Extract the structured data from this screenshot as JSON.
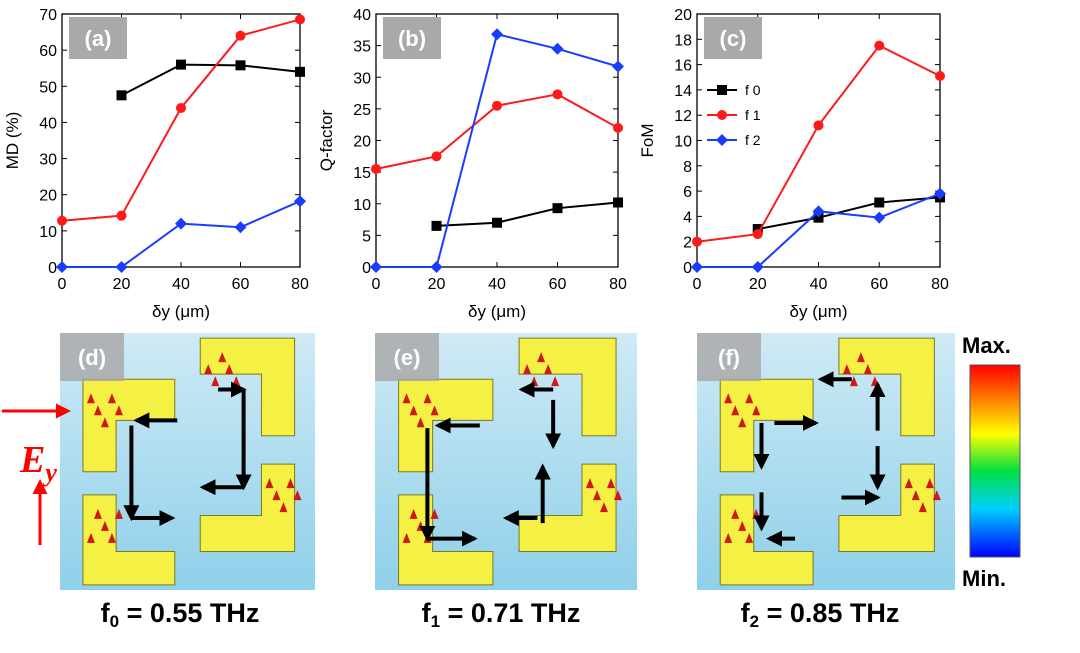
{
  "colors": {
    "f0": "#000000",
    "f1": "#ff1a1a",
    "f2": "#1a3cff",
    "field_bg_top": "#cfeaf5",
    "field_bg_bottom": "#8fd0ea",
    "resonator": "#f5f044",
    "panel_label_bg": "#a9a9a9",
    "arrow_hot": "#d11818"
  },
  "chart_data": [
    {
      "type": "line",
      "panel": "(a)",
      "xlabel": "δy (μm)",
      "ylabel": "MD (%)",
      "xlim": [
        0,
        80
      ],
      "ylim": [
        0,
        70
      ],
      "xticks": [
        0,
        20,
        40,
        60,
        80
      ],
      "yticks": [
        0,
        10,
        20,
        30,
        40,
        50,
        60,
        70
      ],
      "legend": false,
      "series": [
        {
          "key": "f0",
          "marker": "square",
          "points": [
            [
              20,
              47.5
            ],
            [
              40,
              56
            ],
            [
              60,
              55.8
            ],
            [
              80,
              54
            ]
          ]
        },
        {
          "key": "f1",
          "marker": "circle",
          "points": [
            [
              0,
              12.8
            ],
            [
              20,
              14.2
            ],
            [
              40,
              44
            ],
            [
              60,
              64
            ],
            [
              80,
              68.5
            ]
          ]
        },
        {
          "key": "f2",
          "marker": "diamond",
          "points": [
            [
              0,
              0
            ],
            [
              20,
              0
            ],
            [
              40,
              12
            ],
            [
              60,
              11
            ],
            [
              80,
              18.2
            ]
          ]
        }
      ]
    },
    {
      "type": "line",
      "panel": "(b)",
      "xlabel": "δy (μm)",
      "ylabel": "Q-factor",
      "xlim": [
        0,
        80
      ],
      "ylim": [
        0,
        40
      ],
      "xticks": [
        0,
        20,
        40,
        60,
        80
      ],
      "yticks": [
        0,
        5,
        10,
        15,
        20,
        25,
        30,
        35,
        40
      ],
      "legend": false,
      "series": [
        {
          "key": "f0",
          "marker": "square",
          "points": [
            [
              20,
              6.5
            ],
            [
              40,
              7
            ],
            [
              60,
              9.3
            ],
            [
              80,
              10.2
            ]
          ]
        },
        {
          "key": "f1",
          "marker": "circle",
          "points": [
            [
              0,
              15.5
            ],
            [
              20,
              17.5
            ],
            [
              40,
              25.5
            ],
            [
              60,
              27.3
            ],
            [
              80,
              22
            ]
          ]
        },
        {
          "key": "f2",
          "marker": "diamond",
          "points": [
            [
              0,
              0
            ],
            [
              20,
              0
            ],
            [
              40,
              36.8
            ],
            [
              60,
              34.5
            ],
            [
              80,
              31.7
            ]
          ]
        }
      ]
    },
    {
      "type": "line",
      "panel": "(c)",
      "xlabel": "δy (μm)",
      "ylabel": "FoM",
      "xlim": [
        0,
        80
      ],
      "ylim": [
        0,
        20
      ],
      "xticks": [
        0,
        20,
        40,
        60,
        80
      ],
      "yticks": [
        0,
        2,
        4,
        6,
        8,
        10,
        12,
        14,
        16,
        18,
        20
      ],
      "legend": true,
      "legend_position": "upper-left",
      "legend_entries": [
        "f 0",
        "f 1",
        "f 2"
      ],
      "series": [
        {
          "key": "f0",
          "name": "f 0",
          "marker": "square",
          "points": [
            [
              20,
              3
            ],
            [
              40,
              3.9
            ],
            [
              60,
              5.1
            ],
            [
              80,
              5.5
            ]
          ]
        },
        {
          "key": "f1",
          "name": "f 1",
          "marker": "circle",
          "points": [
            [
              0,
              2
            ],
            [
              20,
              2.6
            ],
            [
              40,
              11.2
            ],
            [
              60,
              17.5
            ],
            [
              80,
              15.1
            ]
          ]
        },
        {
          "key": "f2",
          "name": "f 2",
          "marker": "diamond",
          "points": [
            [
              0,
              0
            ],
            [
              20,
              0
            ],
            [
              40,
              4.4
            ],
            [
              60,
              3.9
            ],
            [
              80,
              5.8
            ]
          ]
        }
      ]
    }
  ],
  "field_maps": [
    {
      "panel": "(d)",
      "freq_sym": "f",
      "freq_sub": "0",
      "freq_text": "= 0.55 THz"
    },
    {
      "panel": "(e)",
      "freq_sym": "f",
      "freq_sub": "1",
      "freq_text": "= 0.71 THz"
    },
    {
      "panel": "(f)",
      "freq_sym": "f",
      "freq_sub": "2",
      "freq_text": "= 0.85 THz"
    }
  ],
  "polarization_label": {
    "main": "E",
    "sub": "y"
  },
  "colorbar": {
    "max_label": "Max.",
    "min_label": "Min."
  }
}
